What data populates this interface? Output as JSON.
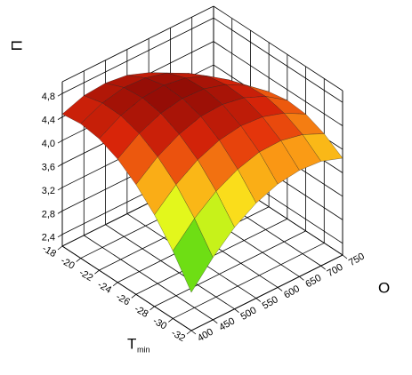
{
  "chart_data": {
    "type": "surface",
    "x_label": "O",
    "y_label": "T",
    "y_label_sub": "min",
    "z_label": "П",
    "x": [
      400,
      450,
      500,
      550,
      600,
      650,
      700,
      750
    ],
    "y": [
      -32,
      -30,
      -28,
      -26,
      -24,
      -22,
      -20,
      -18
    ],
    "xlim": [
      400,
      750
    ],
    "ylim": [
      -32,
      -18
    ],
    "zlim": [
      2.2,
      5.0
    ],
    "zticks": [
      {
        "value": 2.4,
        "label": "2,4"
      },
      {
        "value": 2.8,
        "label": "2,8"
      },
      {
        "value": 3.2,
        "label": "3,2"
      },
      {
        "value": 3.6,
        "label": "3,6"
      },
      {
        "value": 4.0,
        "label": "4,0"
      },
      {
        "value": 4.4,
        "label": "4,4"
      },
      {
        "value": 4.8,
        "label": "4,8"
      }
    ],
    "z": [
      [
        2.85,
        3.26,
        3.59,
        3.82,
        3.96,
        4.01,
        3.98,
        3.85
      ],
      [
        3.35,
        3.72,
        4.0,
        4.19,
        4.3,
        4.31,
        4.23,
        4.06
      ],
      [
        3.76,
        4.09,
        4.33,
        4.48,
        4.54,
        4.51,
        4.39,
        4.19
      ],
      [
        4.07,
        4.36,
        4.56,
        4.68,
        4.7,
        4.63,
        4.47,
        4.22
      ],
      [
        4.3,
        4.55,
        4.71,
        4.78,
        4.76,
        4.65,
        4.45,
        4.16
      ],
      [
        4.44,
        4.65,
        4.77,
        4.8,
        4.74,
        4.59,
        4.34,
        4.01
      ],
      [
        4.49,
        4.66,
        4.74,
        4.72,
        4.62,
        4.43,
        4.15,
        3.78
      ],
      [
        4.45,
        4.58,
        4.61,
        4.56,
        4.42,
        4.19,
        3.86,
        3.45
      ]
    ],
    "grid": true
  }
}
